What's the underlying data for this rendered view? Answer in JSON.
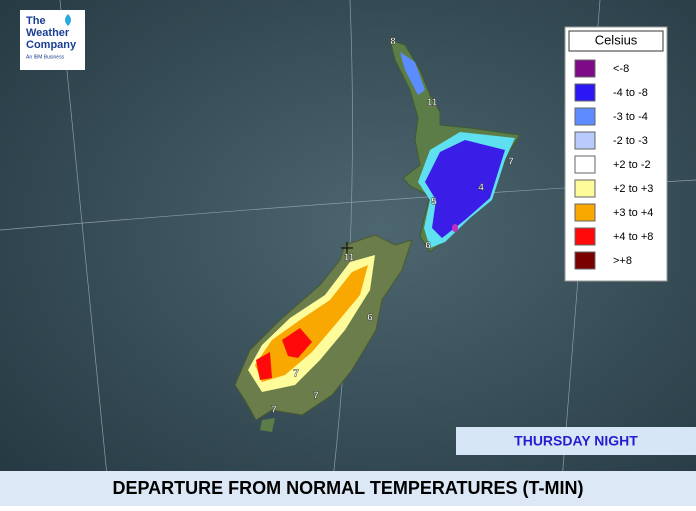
{
  "logo": {
    "line1": "The",
    "line2": "Weather",
    "line3": "Company",
    "tagline": "An IBM Business"
  },
  "legend": {
    "title": "Celsius",
    "items": [
      {
        "label": "<-8",
        "color": "#7d0a86"
      },
      {
        "label": "-4 to -8",
        "color": "#2b17f5"
      },
      {
        "label": "-3 to -4",
        "color": "#5c8cff"
      },
      {
        "label": "-2 to -3",
        "color": "#b8cbfb"
      },
      {
        "label": "+2 to -2",
        "color": "#ffffff"
      },
      {
        "label": "+2 to +3",
        "color": "#fdfb9a"
      },
      {
        "label": "+3 to +4",
        "color": "#f8a800"
      },
      {
        "label": "+4 to +8",
        "color": "#ff0a0a"
      },
      {
        "label": ">+8",
        "color": "#7a0000"
      }
    ]
  },
  "map_labels": [
    "8",
    "11",
    "7",
    "4",
    "5",
    "6",
    "11",
    "6",
    "7",
    "7",
    "7"
  ],
  "period": "THURSDAY NIGHT",
  "title": "DEPARTURE FROM NORMAL TEMPERATURES (T-MIN)"
}
